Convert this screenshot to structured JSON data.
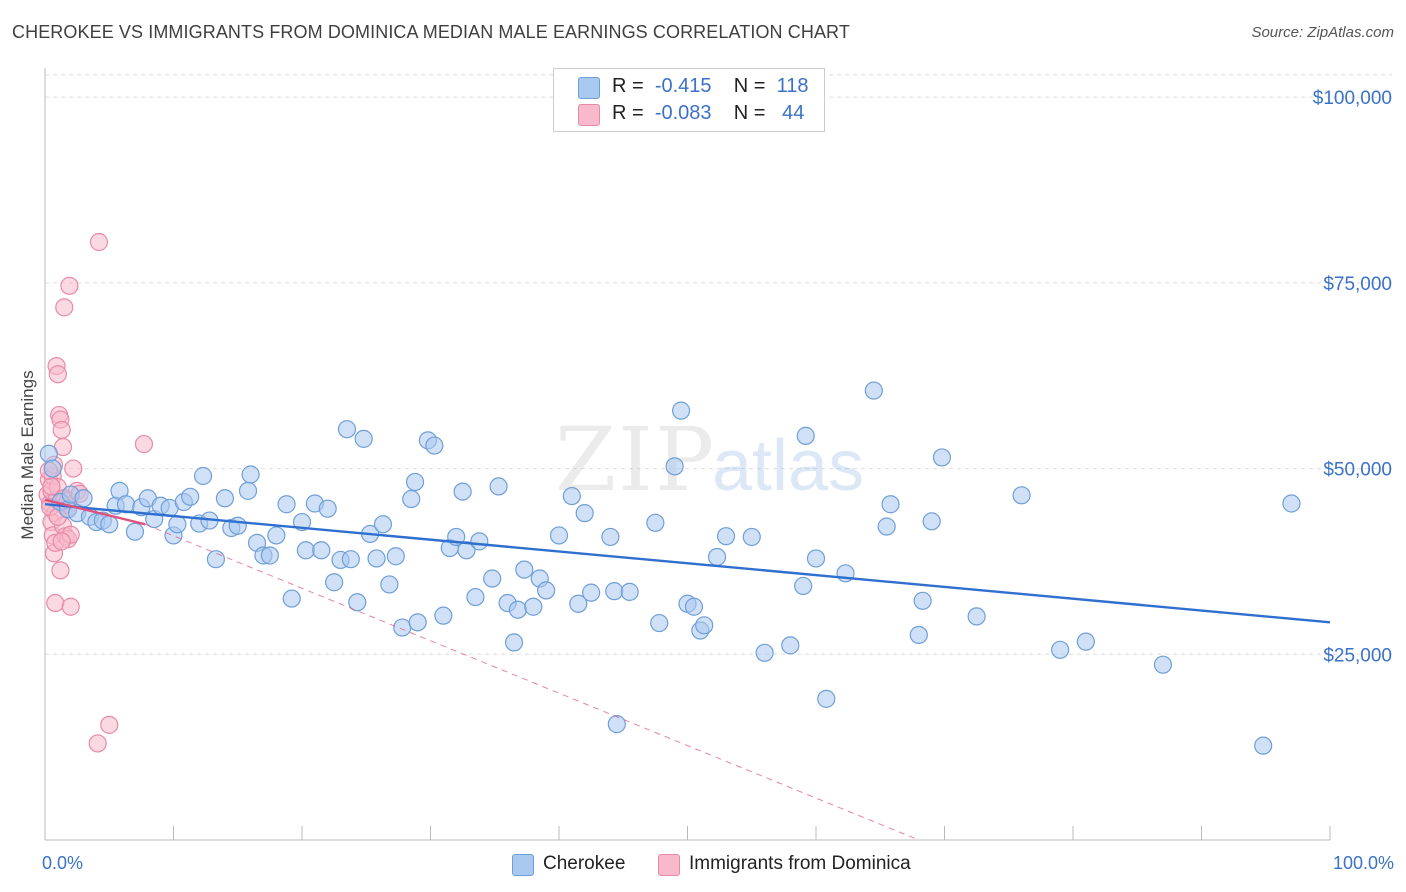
{
  "title": "CHEROKEE VS IMMIGRANTS FROM DOMINICA MEDIAN MALE EARNINGS CORRELATION CHART",
  "source": "Source: ZipAtlas.com",
  "watermark": {
    "zip": "ZIP",
    "atlas": "atlas"
  },
  "legend": [
    {
      "r_label": "R =",
      "r_value": "-0.415",
      "n_label": "N =",
      "n_value": "118"
    },
    {
      "r_label": "R =",
      "r_value": "-0.083",
      "n_label": "N =",
      "n_value": "44"
    }
  ],
  "bottom_legend": {
    "series1": "Cherokee",
    "series2": "Immigrants from Dominica"
  },
  "colors": {
    "blue_fill": "#a9c9f0",
    "blue_stroke": "#6f9fd8",
    "blue_line": "#2f6fd0",
    "pink_fill": "#f7b9cb",
    "pink_stroke": "#e98aa8",
    "pink_line": "#e0507e",
    "tick_text": "#3a72c9",
    "grid": "#dddddd",
    "axis": "#bbbbbb"
  },
  "chart_data": {
    "type": "scatter",
    "title": "CHEROKEE VS IMMIGRANTS FROM DOMINICA MEDIAN MALE EARNINGS CORRELATION CHART",
    "xlabel": "",
    "ylabel": "Median Male Earnings",
    "xlim": [
      0,
      100
    ],
    "ylim": [
      0,
      105000
    ],
    "x_tick_labels": {
      "min": "0.0%",
      "max": "100.0%"
    },
    "y_ticks": [
      {
        "value": 25000,
        "label": "$25,000"
      },
      {
        "value": 50000,
        "label": "$50,000"
      },
      {
        "value": 75000,
        "label": "$75,000"
      },
      {
        "value": 100000,
        "label": "$100,000"
      }
    ],
    "grid": true,
    "series": [
      {
        "name": "Cherokee",
        "color": "#a9c9f0",
        "points": [
          [
            0.3,
            52000
          ],
          [
            0.6,
            50000
          ],
          [
            1.2,
            45500
          ],
          [
            1.8,
            44500
          ],
          [
            2.0,
            46500
          ],
          [
            2.5,
            44000
          ],
          [
            3.0,
            46000
          ],
          [
            3.5,
            43500
          ],
          [
            4.0,
            42800
          ],
          [
            4.5,
            43000
          ],
          [
            5.0,
            42500
          ],
          [
            5.5,
            45000
          ],
          [
            5.8,
            47000
          ],
          [
            6.3,
            45200
          ],
          [
            7.0,
            41500
          ],
          [
            7.5,
            44800
          ],
          [
            8.0,
            46000
          ],
          [
            8.5,
            43200
          ],
          [
            9.0,
            45000
          ],
          [
            9.7,
            44700
          ],
          [
            10.0,
            41000
          ],
          [
            10.3,
            42500
          ],
          [
            10.8,
            45500
          ],
          [
            11.3,
            46200
          ],
          [
            12.0,
            42600
          ],
          [
            12.3,
            49000
          ],
          [
            12.8,
            43000
          ],
          [
            13.3,
            37800
          ],
          [
            14.0,
            46000
          ],
          [
            14.5,
            42000
          ],
          [
            15.0,
            42300
          ],
          [
            15.8,
            47000
          ],
          [
            16.0,
            49200
          ],
          [
            16.5,
            40000
          ],
          [
            17.0,
            38300
          ],
          [
            17.5,
            38300
          ],
          [
            18.0,
            41000
          ],
          [
            18.8,
            45200
          ],
          [
            19.2,
            32500
          ],
          [
            20.0,
            42800
          ],
          [
            20.3,
            39000
          ],
          [
            21.0,
            45300
          ],
          [
            21.5,
            39000
          ],
          [
            22.0,
            44600
          ],
          [
            22.5,
            34700
          ],
          [
            23.0,
            37700
          ],
          [
            23.5,
            55300
          ],
          [
            23.8,
            37800
          ],
          [
            24.3,
            32000
          ],
          [
            24.8,
            54000
          ],
          [
            25.3,
            41200
          ],
          [
            25.8,
            37900
          ],
          [
            26.3,
            42500
          ],
          [
            26.8,
            34400
          ],
          [
            27.3,
            38200
          ],
          [
            27.8,
            28600
          ],
          [
            28.5,
            45900
          ],
          [
            28.8,
            48200
          ],
          [
            29.0,
            29300
          ],
          [
            29.8,
            53800
          ],
          [
            30.3,
            53100
          ],
          [
            31.0,
            30200
          ],
          [
            31.5,
            39300
          ],
          [
            32.0,
            40800
          ],
          [
            32.5,
            46900
          ],
          [
            32.8,
            39000
          ],
          [
            33.5,
            32700
          ],
          [
            33.8,
            40200
          ],
          [
            34.8,
            35200
          ],
          [
            35.3,
            47600
          ],
          [
            36.0,
            31900
          ],
          [
            36.5,
            26600
          ],
          [
            36.8,
            31000
          ],
          [
            37.3,
            36400
          ],
          [
            38.0,
            31400
          ],
          [
            38.5,
            35200
          ],
          [
            39.0,
            33600
          ],
          [
            40.0,
            41000
          ],
          [
            41.0,
            46300
          ],
          [
            41.5,
            31800
          ],
          [
            42.0,
            44000
          ],
          [
            42.5,
            33300
          ],
          [
            44.0,
            40800
          ],
          [
            44.3,
            33500
          ],
          [
            45.5,
            33400
          ],
          [
            47.5,
            42700
          ],
          [
            47.8,
            29200
          ],
          [
            49.0,
            50300
          ],
          [
            49.5,
            57800
          ],
          [
            50.0,
            31800
          ],
          [
            50.5,
            31400
          ],
          [
            51.0,
            28200
          ],
          [
            51.3,
            28900
          ],
          [
            52.3,
            38100
          ],
          [
            53.0,
            40900
          ],
          [
            55.0,
            40800
          ],
          [
            56.0,
            25200
          ],
          [
            58.0,
            26200
          ],
          [
            59.0,
            34200
          ],
          [
            59.2,
            54400
          ],
          [
            60.0,
            37900
          ],
          [
            60.8,
            19000
          ],
          [
            62.3,
            35900
          ],
          [
            64.5,
            60500
          ],
          [
            65.5,
            42200
          ],
          [
            65.8,
            45200
          ],
          [
            68.0,
            27600
          ],
          [
            68.3,
            32200
          ],
          [
            69.0,
            42900
          ],
          [
            69.8,
            51500
          ],
          [
            72.5,
            30100
          ],
          [
            76.0,
            46400
          ],
          [
            79.0,
            25600
          ],
          [
            81.0,
            26700
          ],
          [
            87.0,
            23600
          ],
          [
            94.8,
            12700
          ],
          [
            97.0,
            45300
          ],
          [
            44.5,
            15600
          ]
        ]
      },
      {
        "name": "Immigrants from Dominica",
        "color": "#f7b9cb",
        "points": [
          [
            0.2,
            46500
          ],
          [
            0.3,
            48500
          ],
          [
            0.4,
            45300
          ],
          [
            0.5,
            47000
          ],
          [
            0.6,
            49000
          ],
          [
            0.7,
            50500
          ],
          [
            0.8,
            44000
          ],
          [
            0.9,
            45800
          ],
          [
            1.0,
            47500
          ],
          [
            0.5,
            42800
          ],
          [
            0.6,
            41000
          ],
          [
            0.7,
            38600
          ],
          [
            0.8,
            40000
          ],
          [
            0.9,
            63800
          ],
          [
            1.0,
            62700
          ],
          [
            1.1,
            57200
          ],
          [
            1.2,
            56600
          ],
          [
            1.3,
            55200
          ],
          [
            1.4,
            52900
          ],
          [
            1.5,
            46000
          ],
          [
            1.6,
            45100
          ],
          [
            1.7,
            44600
          ],
          [
            1.2,
            36300
          ],
          [
            1.4,
            42300
          ],
          [
            1.6,
            40900
          ],
          [
            1.8,
            40500
          ],
          [
            2.0,
            41100
          ],
          [
            2.2,
            50000
          ],
          [
            1.8,
            45700
          ],
          [
            2.5,
            47000
          ],
          [
            0.8,
            31900
          ],
          [
            2.0,
            31400
          ],
          [
            1.5,
            71700
          ],
          [
            1.9,
            74600
          ],
          [
            4.2,
            80500
          ],
          [
            7.7,
            53300
          ],
          [
            4.1,
            13000
          ],
          [
            5.0,
            15500
          ],
          [
            0.4,
            44800
          ],
          [
            0.5,
            47600
          ],
          [
            1.0,
            43500
          ],
          [
            1.3,
            40200
          ],
          [
            2.7,
            46600
          ],
          [
            0.3,
            49700
          ]
        ]
      }
    ],
    "trendlines": [
      {
        "series": "Cherokee",
        "style": "solid",
        "from": [
          0,
          45200
        ],
        "to": [
          100,
          29300
        ]
      },
      {
        "series": "Immigrants from Dominica",
        "style": "solid",
        "from": [
          0,
          45800
        ],
        "to": [
          7.8,
          42500
        ]
      },
      {
        "series": "Immigrants from Dominica",
        "style": "dashed",
        "from": [
          7.8,
          42500
        ],
        "to": [
          68,
          0
        ]
      }
    ]
  }
}
